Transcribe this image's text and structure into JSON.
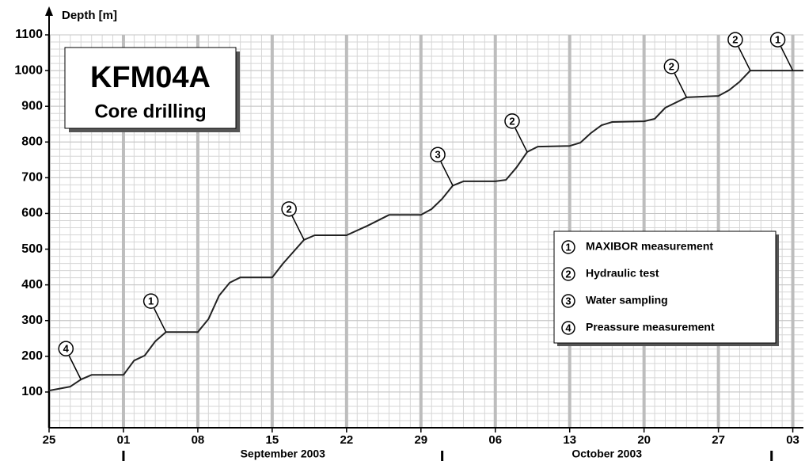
{
  "chart_data": {
    "type": "line",
    "title": "KFM04A",
    "subtitle": "Core drilling",
    "y_label": "Depth [m]",
    "color": "#222222",
    "x": [
      "2003-08-25",
      "2003-08-27",
      "2003-08-28",
      "2003-08-29",
      "2003-09-01",
      "2003-09-02",
      "2003-09-03",
      "2003-09-04",
      "2003-09-05",
      "2003-09-08",
      "2003-09-09",
      "2003-09-10",
      "2003-09-11",
      "2003-09-12",
      "2003-09-15",
      "2003-09-16",
      "2003-09-18",
      "2003-09-19",
      "2003-09-22",
      "2003-09-24",
      "2003-09-26",
      "2003-09-29",
      "2003-09-30",
      "2003-10-01",
      "2003-10-02",
      "2003-10-03",
      "2003-10-06",
      "2003-10-07",
      "2003-10-08",
      "2003-10-09",
      "2003-10-10",
      "2003-10-13",
      "2003-10-14",
      "2003-10-15",
      "2003-10-16",
      "2003-10-17",
      "2003-10-20",
      "2003-10-21",
      "2003-10-22",
      "2003-10-24",
      "2003-10-27",
      "2003-10-28",
      "2003-10-29",
      "2003-10-30",
      "2003-11-04"
    ],
    "values": [
      104,
      115,
      135,
      148,
      148,
      188,
      202,
      242,
      268,
      268,
      304,
      370,
      406,
      421,
      421,
      459,
      526,
      539,
      539,
      566,
      596,
      596,
      612,
      641,
      678,
      690,
      690,
      694,
      729,
      772,
      787,
      789,
      798,
      825,
      847,
      856,
      858,
      865,
      896,
      925,
      929,
      945,
      969,
      1000,
      1000
    ],
    "xlim": [
      "2003-08-25",
      "2003-11-04"
    ],
    "xticks": [
      {
        "value": "2003-08-25",
        "label": "25"
      },
      {
        "value": "2003-09-01",
        "label": "01"
      },
      {
        "value": "2003-09-08",
        "label": "08"
      },
      {
        "value": "2003-09-15",
        "label": "15"
      },
      {
        "value": "2003-09-22",
        "label": "22"
      },
      {
        "value": "2003-09-29",
        "label": "29"
      },
      {
        "value": "2003-10-06",
        "label": "06"
      },
      {
        "value": "2003-10-13",
        "label": "13"
      },
      {
        "value": "2003-10-20",
        "label": "20"
      },
      {
        "value": "2003-10-27",
        "label": "27"
      },
      {
        "value": "2003-11-03",
        "label": "03"
      }
    ],
    "month_labels": [
      {
        "label": "September 2003",
        "start": "2003-09-01",
        "end": "2003-10-01"
      },
      {
        "label": "October 2003",
        "start": "2003-10-01",
        "end": "2003-11-01"
      }
    ],
    "ylim": [
      0,
      1100
    ],
    "yticks": [
      100,
      200,
      300,
      400,
      500,
      600,
      700,
      800,
      900,
      1000,
      1100
    ],
    "grid": true,
    "minor_grid": true,
    "annotations": [
      {
        "text": "4",
        "x": "2003-08-28"
      },
      {
        "text": "1",
        "x": "2003-09-05"
      },
      {
        "text": "2",
        "x": "2003-09-18"
      },
      {
        "text": "3",
        "x": "2003-10-02"
      },
      {
        "text": "2",
        "x": "2003-10-09"
      },
      {
        "text": "2",
        "x": "2003-10-24"
      },
      {
        "text": "2",
        "x": "2003-10-30"
      },
      {
        "text": "1",
        "x": "2003-11-03"
      }
    ],
    "legend": [
      {
        "symbol": "1",
        "text": "MAXIBOR measurement"
      },
      {
        "symbol": "2",
        "text": "Hydraulic test"
      },
      {
        "symbol": "3",
        "text": "Water sampling"
      },
      {
        "symbol": "4",
        "text": "Preassure measurement"
      }
    ]
  }
}
